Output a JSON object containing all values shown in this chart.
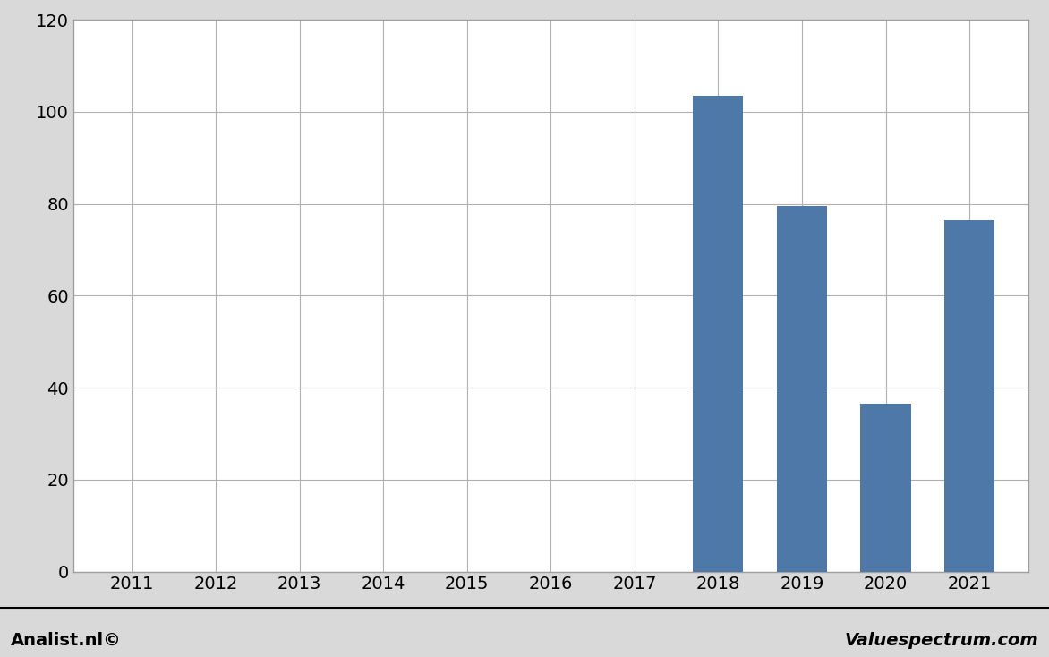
{
  "categories": [
    2011,
    2012,
    2013,
    2014,
    2015,
    2016,
    2017,
    2018,
    2019,
    2020,
    2021
  ],
  "values": [
    0,
    0,
    0,
    0,
    0,
    0,
    0,
    103.5,
    79.5,
    36.5,
    76.5
  ],
  "bar_color": "#4e78a8",
  "ylim": [
    0,
    120
  ],
  "yticks": [
    0,
    20,
    40,
    60,
    80,
    100,
    120
  ],
  "background_color": "#ffffff",
  "outer_background": "#d9d9d9",
  "grid_color": "#b0b0b0",
  "footer_left": "Analist.nl©",
  "footer_right": "Valuespectrum.com",
  "footer_fontsize": 14,
  "tick_fontsize": 14,
  "bar_width": 0.6
}
